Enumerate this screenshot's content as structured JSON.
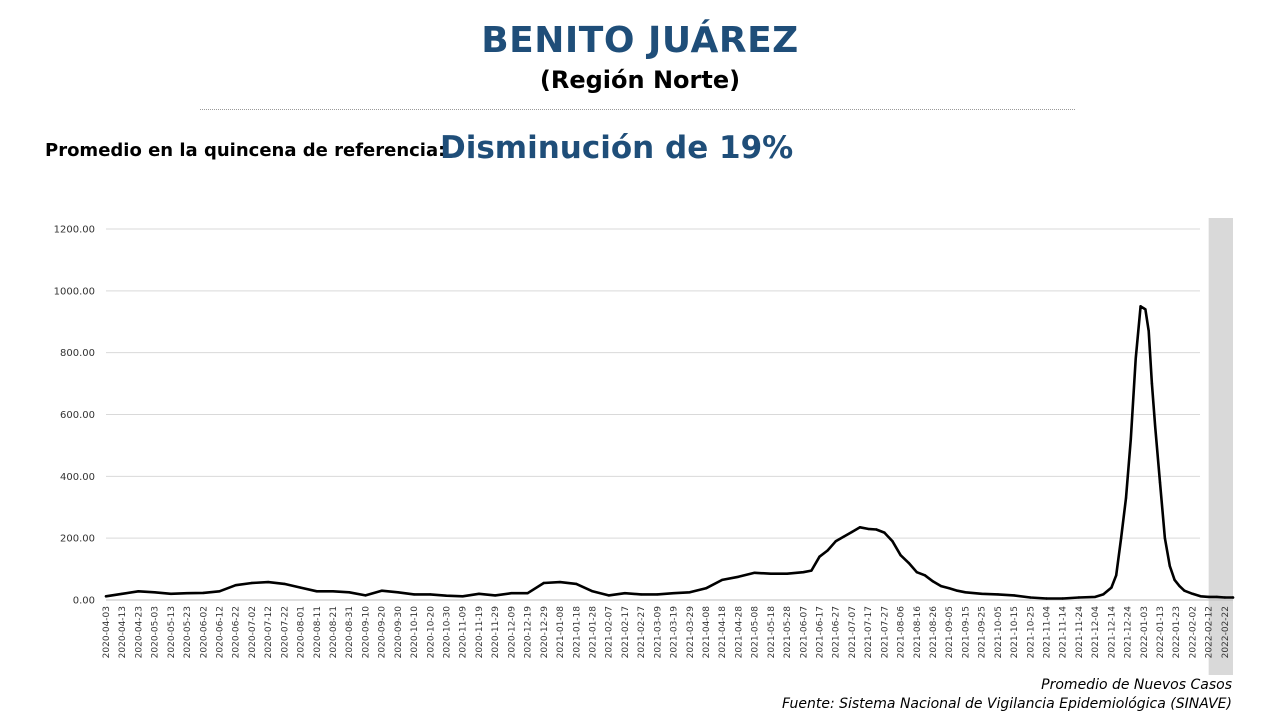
{
  "header": {
    "title": "BENITO JUÁREZ",
    "subtitle": "(Región Norte)"
  },
  "reference": {
    "label": "Promedio en la quincena de referencia:",
    "value": "Disminución de 19%"
  },
  "footer": {
    "series_label": "Promedio de Nuevos Casos",
    "source": "Fuente: Sistema Nacional de Vigilancia Epidemiológica (SINAVE)"
  },
  "colors": {
    "title": "#1f4e79",
    "line": "#000000",
    "grid": "#d9d9d9",
    "highlight": "#d9d9d9"
  },
  "chart_data": {
    "type": "line",
    "title": "",
    "xlabel": "",
    "ylabel": "",
    "ylim": [
      0,
      1200
    ],
    "yticks": [
      "0.00",
      "200.00",
      "400.00",
      "600.00",
      "800.00",
      "1000.00",
      "1200.00"
    ],
    "grid": true,
    "shaded_region": [
      "2022-02-12",
      "2022-02-27"
    ],
    "x_ticks": [
      "2020-04-03",
      "2020-04-13",
      "2020-04-23",
      "2020-05-03",
      "2020-05-13",
      "2020-05-23",
      "2020-06-02",
      "2020-06-12",
      "2020-06-22",
      "2020-07-02",
      "2020-07-12",
      "2020-07-22",
      "2020-08-01",
      "2020-08-11",
      "2020-08-21",
      "2020-08-31",
      "2020-09-10",
      "2020-09-20",
      "2020-09-30",
      "2020-10-10",
      "2020-10-20",
      "2020-10-30",
      "2020-11-09",
      "2020-11-19",
      "2020-11-29",
      "2020-12-09",
      "2020-12-19",
      "2020-12-29",
      "2021-01-08",
      "2021-01-18",
      "2021-01-28",
      "2021-02-07",
      "2021-02-17",
      "2021-02-27",
      "2021-03-09",
      "2021-03-19",
      "2021-03-29",
      "2021-04-08",
      "2021-04-18",
      "2021-04-28",
      "2021-05-08",
      "2021-05-18",
      "2021-05-28",
      "2021-06-07",
      "2021-06-17",
      "2021-06-27",
      "2021-07-07",
      "2021-07-17",
      "2021-07-27",
      "2021-08-06",
      "2021-08-16",
      "2021-08-26",
      "2021-09-05",
      "2021-09-15",
      "2021-09-25",
      "2021-10-05",
      "2021-10-15",
      "2021-10-25",
      "2021-11-04",
      "2021-11-14",
      "2021-11-24",
      "2021-12-04",
      "2021-12-14",
      "2021-12-24",
      "2022-01-03",
      "2022-01-13",
      "2022-01-23",
      "2022-02-02",
      "2022-02-12",
      "2022-02-22"
    ],
    "series": [
      {
        "name": "Promedio de Nuevos Casos",
        "x": [
          "2020-04-03",
          "2020-04-13",
          "2020-04-23",
          "2020-05-03",
          "2020-05-13",
          "2020-05-23",
          "2020-06-02",
          "2020-06-12",
          "2020-06-22",
          "2020-07-02",
          "2020-07-12",
          "2020-07-22",
          "2020-08-01",
          "2020-08-11",
          "2020-08-21",
          "2020-08-31",
          "2020-09-10",
          "2020-09-20",
          "2020-09-30",
          "2020-10-10",
          "2020-10-20",
          "2020-10-30",
          "2020-11-09",
          "2020-11-19",
          "2020-11-29",
          "2020-12-09",
          "2020-12-19",
          "2020-12-29",
          "2021-01-08",
          "2021-01-18",
          "2021-01-28",
          "2021-02-07",
          "2021-02-17",
          "2021-02-27",
          "2021-03-09",
          "2021-03-19",
          "2021-03-29",
          "2021-04-08",
          "2021-04-18",
          "2021-04-28",
          "2021-05-08",
          "2021-05-18",
          "2021-05-28",
          "2021-06-07",
          "2021-06-12",
          "2021-06-17",
          "2021-06-22",
          "2021-06-27",
          "2021-07-02",
          "2021-07-07",
          "2021-07-12",
          "2021-07-17",
          "2021-07-22",
          "2021-07-27",
          "2021-08-01",
          "2021-08-06",
          "2021-08-11",
          "2021-08-16",
          "2021-08-21",
          "2021-08-26",
          "2021-08-31",
          "2021-09-05",
          "2021-09-10",
          "2021-09-15",
          "2021-09-25",
          "2021-10-05",
          "2021-10-15",
          "2021-10-25",
          "2021-11-04",
          "2021-11-14",
          "2021-11-24",
          "2021-12-04",
          "2021-12-09",
          "2021-12-14",
          "2021-12-17",
          "2021-12-20",
          "2021-12-23",
          "2021-12-26",
          "2021-12-29",
          "2022-01-01",
          "2022-01-04",
          "2022-01-06",
          "2022-01-08",
          "2022-01-10",
          "2022-01-13",
          "2022-01-16",
          "2022-01-19",
          "2022-01-22",
          "2022-01-25",
          "2022-01-28",
          "2022-02-02",
          "2022-02-07",
          "2022-02-12",
          "2022-02-17",
          "2022-02-22",
          "2022-02-27"
        ],
        "values": [
          12,
          20,
          28,
          25,
          20,
          22,
          23,
          28,
          48,
          55,
          58,
          52,
          40,
          28,
          28,
          25,
          15,
          30,
          25,
          18,
          18,
          14,
          12,
          20,
          15,
          22,
          22,
          55,
          58,
          52,
          28,
          15,
          22,
          18,
          18,
          22,
          25,
          38,
          65,
          75,
          88,
          85,
          85,
          90,
          95,
          140,
          160,
          190,
          205,
          220,
          235,
          230,
          228,
          218,
          190,
          145,
          120,
          90,
          80,
          60,
          45,
          38,
          30,
          25,
          20,
          18,
          15,
          8,
          5,
          5,
          8,
          10,
          18,
          40,
          80,
          200,
          330,
          520,
          780,
          950,
          940,
          870,
          700,
          560,
          380,
          200,
          110,
          65,
          45,
          30,
          20,
          12,
          10,
          10,
          8,
          8
        ]
      }
    ]
  }
}
